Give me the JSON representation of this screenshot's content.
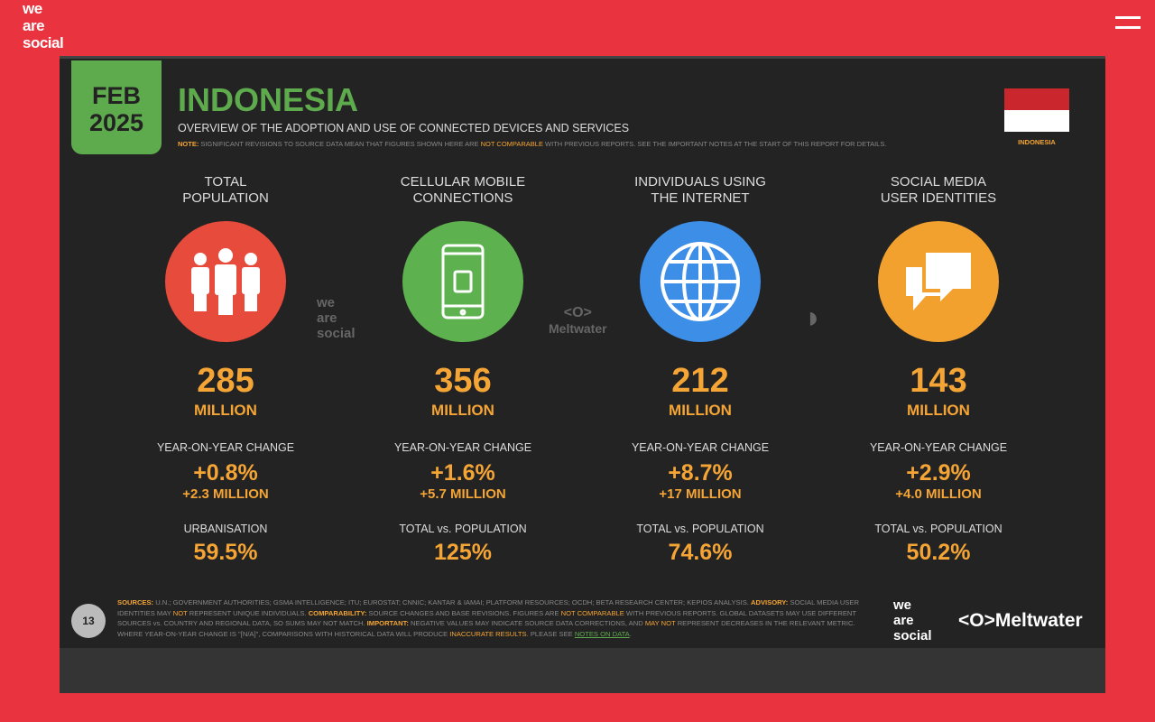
{
  "brand": {
    "line1": "we",
    "line2": "are",
    "line3": "social"
  },
  "header": {
    "date_month": "FEB",
    "date_year": "2025",
    "title": "INDONESIA",
    "subtitle": "OVERVIEW OF THE ADOPTION AND USE OF CONNECTED DEVICES AND SERVICES",
    "note_label": "NOTE:",
    "note_1": " SIGNIFICANT REVISIONS TO SOURCE DATA MEAN THAT FIGURES SHOWN HERE ARE ",
    "note_highlight": "NOT COMPARABLE",
    "note_2": " WITH PREVIOUS REPORTS. SEE THE IMPORTANT NOTES AT THE START OF THIS REPORT FOR DETAILS.",
    "flag_label": "INDONESIA"
  },
  "colors": {
    "background": "#e9343f",
    "accent": "#f5a535",
    "green": "#5eab4d"
  },
  "stats": [
    {
      "heading1": "TOTAL",
      "heading2": "POPULATION",
      "icon": "people-icon",
      "color": "#e64b3c",
      "value": "285",
      "unit": "MILLION",
      "yoy_label": "YEAR-ON-YEAR CHANGE",
      "yoy_pct": "+0.8%",
      "yoy_abs": "+2.3 MILLION",
      "extra_label": "URBANISATION",
      "extra_value": "59.5%"
    },
    {
      "heading1": "CELLULAR MOBILE",
      "heading2": "CONNECTIONS",
      "icon": "mobile-phone-icon",
      "color": "#5db14e",
      "value": "356",
      "unit": "MILLION",
      "yoy_label": "YEAR-ON-YEAR CHANGE",
      "yoy_pct": "+1.6%",
      "yoy_abs": "+5.7 MILLION",
      "extra_label": "TOTAL vs. POPULATION",
      "extra_value": "125%"
    },
    {
      "heading1": "INDIVIDUALS USING",
      "heading2": "THE INTERNET",
      "icon": "globe-icon",
      "color": "#3d8ee6",
      "value": "212",
      "unit": "MILLION",
      "yoy_label": "YEAR-ON-YEAR CHANGE",
      "yoy_pct": "+8.7%",
      "yoy_abs": "+17 MILLION",
      "extra_label": "TOTAL vs. POPULATION",
      "extra_value": "74.6%"
    },
    {
      "heading1": "SOCIAL MEDIA",
      "heading2": "USER IDENTITIES",
      "icon": "chat-bubbles-icon",
      "color": "#f2a12e",
      "value": "143",
      "unit": "MILLION",
      "yoy_label": "YEAR-ON-YEAR CHANGE",
      "yoy_pct": "+2.9%",
      "yoy_abs": "+4.0 MILLION",
      "extra_label": "TOTAL vs. POPULATION",
      "extra_value": "50.2%"
    }
  ],
  "watermarks": {
    "wes1": "we",
    "wes2": "are",
    "wes3": "social",
    "meltwater": "Meltwater"
  },
  "footer": {
    "page": "13",
    "sources": [
      {
        "t": "b",
        "v": "SOURCES:"
      },
      {
        "t": "n",
        "v": " U.N.; GOVERNMENT AUTHORITIES; GSMA INTELLIGENCE; ITU; EUROSTAT; CNNIC; KANTAR & IAMAI; PLATFORM RESOURCES; OCDH; BETA RESEARCH CENTER; KEPIOS ANALYSIS. "
      },
      {
        "t": "b",
        "v": "ADVISORY:"
      },
      {
        "t": "n",
        "v": " SOCIAL MEDIA USER IDENTITIES MAY "
      },
      {
        "t": "o",
        "v": "NOT"
      },
      {
        "t": "n",
        "v": " REPRESENT UNIQUE INDIVIDUALS. "
      },
      {
        "t": "b",
        "v": "COMPARABILITY:"
      },
      {
        "t": "n",
        "v": " SOURCE CHANGES AND BASE REVISIONS. FIGURES ARE "
      },
      {
        "t": "o",
        "v": "NOT COMPARABLE"
      },
      {
        "t": "n",
        "v": " WITH PREVIOUS REPORTS. GLOBAL DATASETS MAY USE DIFFERENT SOURCES vs. COUNTRY AND REGIONAL DATA, SO SUMS MAY NOT MATCH. "
      },
      {
        "t": "b",
        "v": "IMPORTANT:"
      },
      {
        "t": "n",
        "v": " NEGATIVE VALUES MAY INDICATE SOURCE DATA CORRECTIONS, AND "
      },
      {
        "t": "o",
        "v": "MAY NOT"
      },
      {
        "t": "n",
        "v": " REPRESENT DECREASES IN THE RELEVANT METRIC. WHERE YEAR-ON-YEAR CHANGE IS \"[N/A]\", COMPARISONS WITH HISTORICAL DATA WILL PRODUCE "
      },
      {
        "t": "o",
        "v": "INACCURATE RESULTS"
      },
      {
        "t": "n",
        "v": ". PLEASE SEE "
      },
      {
        "t": "g",
        "v": "NOTES ON DATA"
      },
      {
        "t": "n",
        "v": "."
      }
    ],
    "logo1": "we",
    "logo2": "are",
    "logo3": "social",
    "logo_meltwater": "Meltwater"
  }
}
